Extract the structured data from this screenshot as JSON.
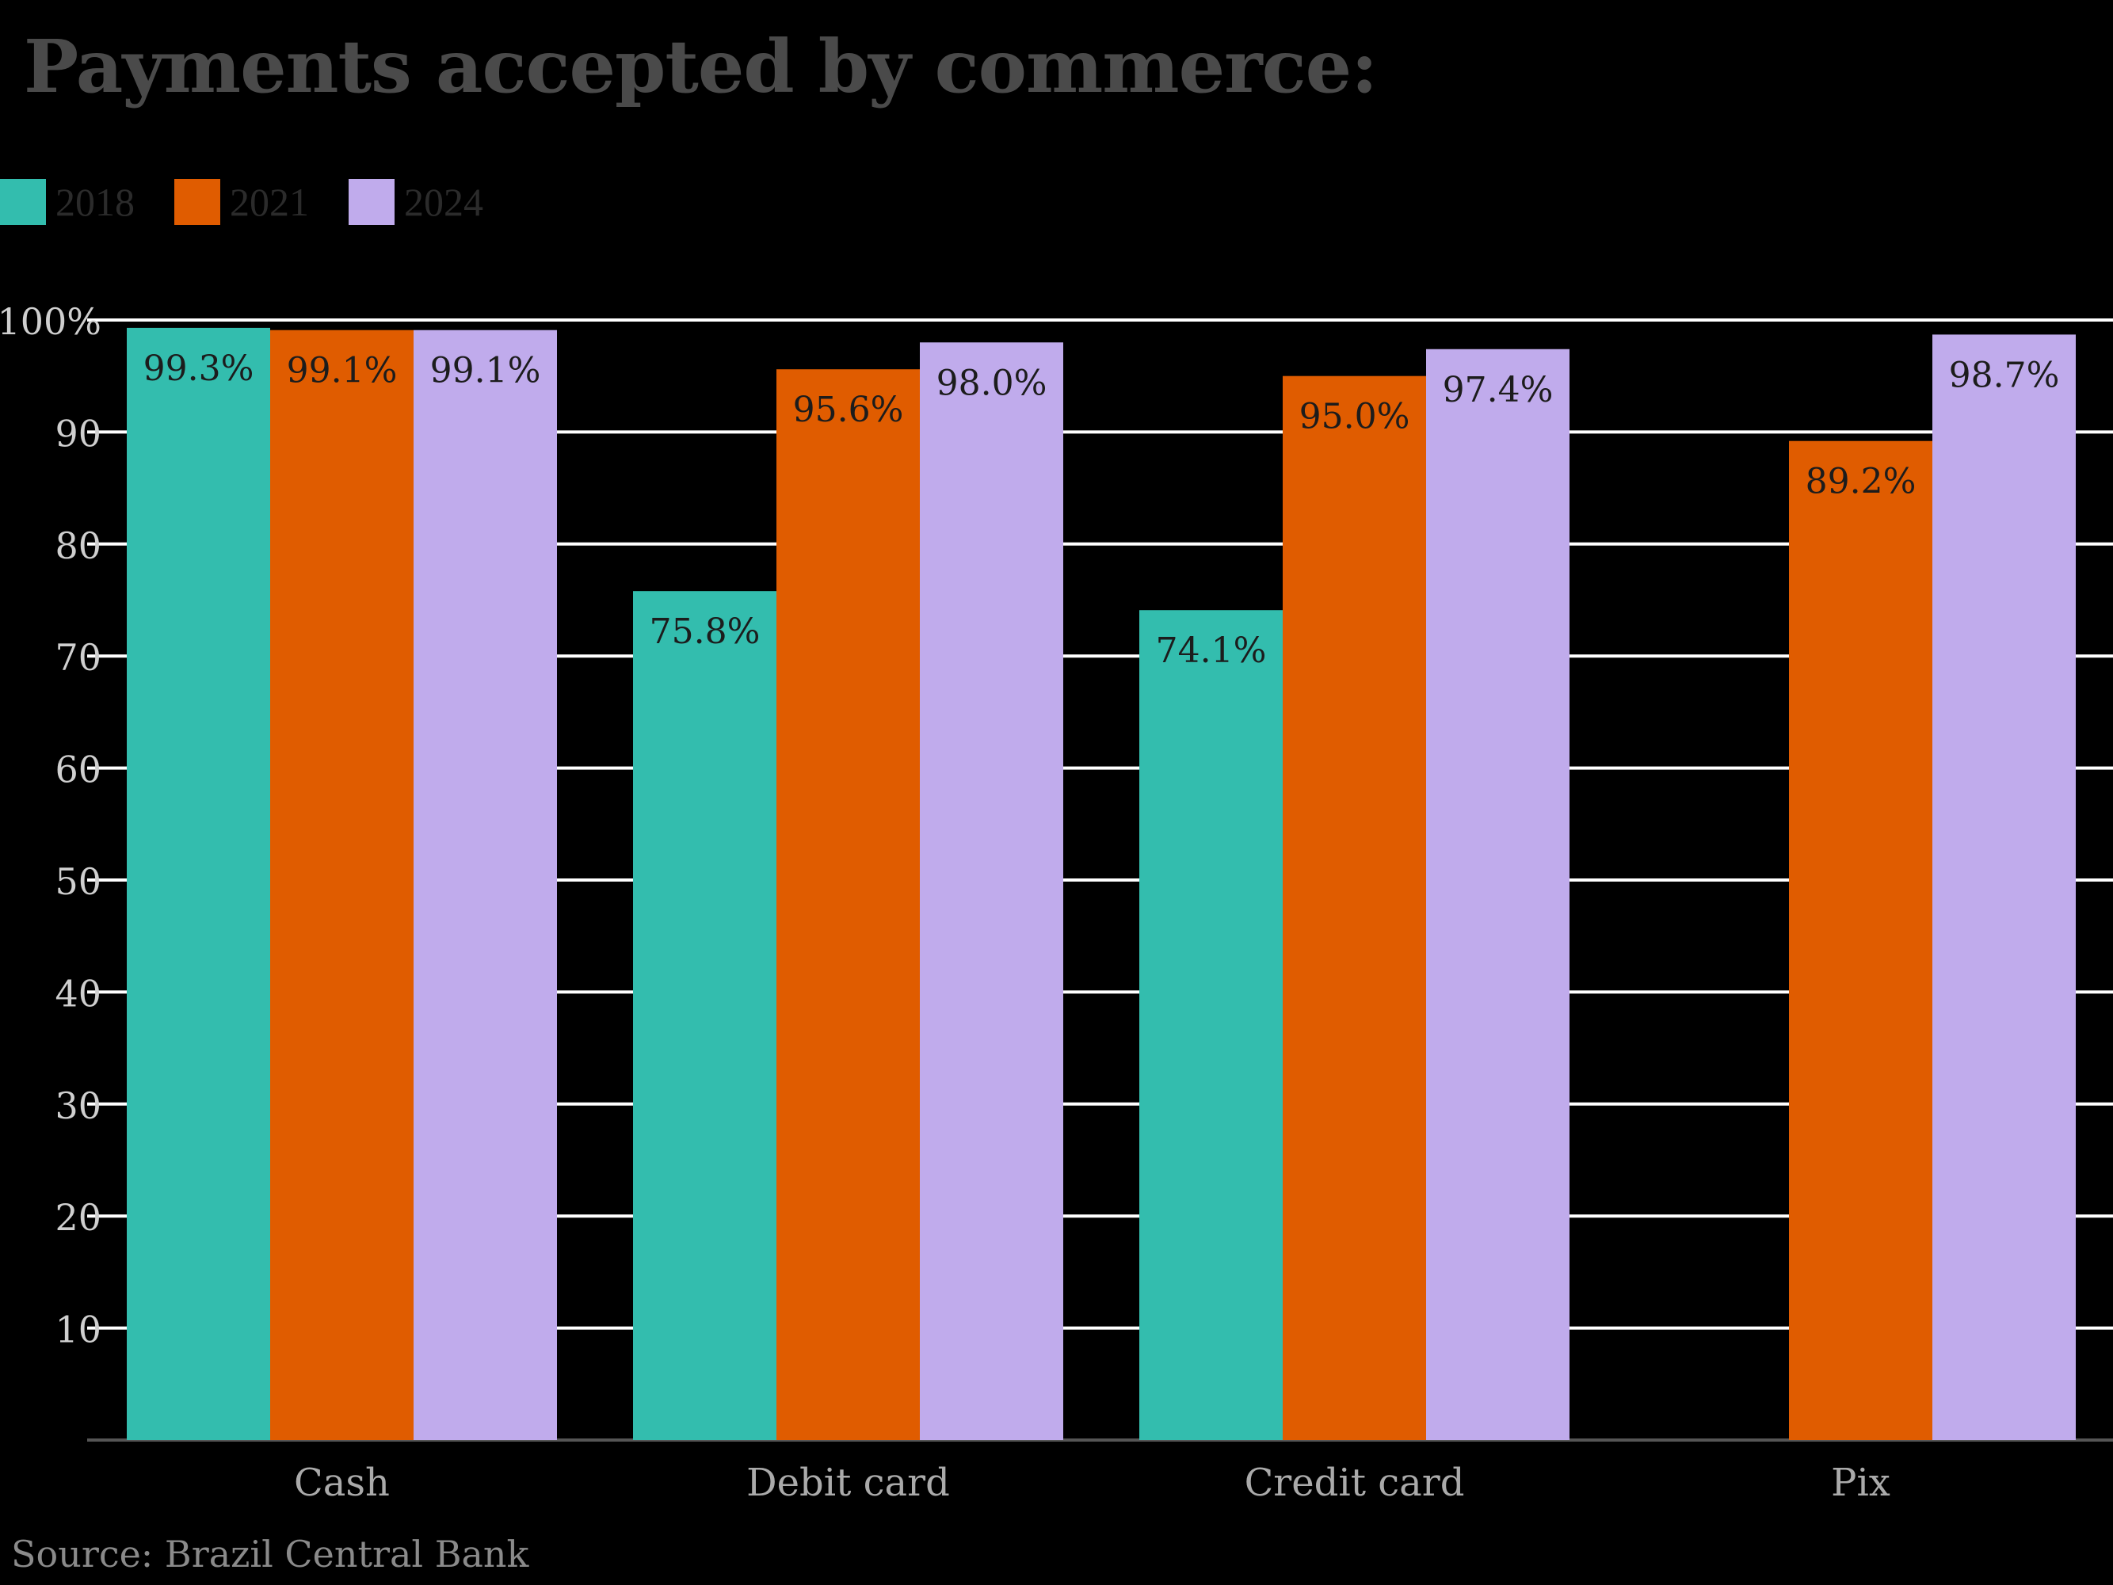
{
  "title": "Payments accepted by commerce:",
  "source": "Source: Brazil Central Bank",
  "chart_data": {
    "type": "bar",
    "categories": [
      "Cash",
      "Debit card",
      "Credit card",
      "Pix"
    ],
    "series": [
      {
        "name": "2018",
        "color": "#33bdae",
        "values": [
          99.3,
          75.8,
          74.1,
          null
        ],
        "labels": [
          "99.3%",
          "75.8%",
          "74.1%",
          ""
        ]
      },
      {
        "name": "2021",
        "color": "#e05c00",
        "values": [
          99.1,
          95.6,
          95.0,
          89.2
        ],
        "labels": [
          "99.1%",
          "95.6%",
          "95.0%",
          "89.2%"
        ]
      },
      {
        "name": "2024",
        "color": "#c0abec",
        "values": [
          99.1,
          98.0,
          97.4,
          98.7
        ],
        "labels": [
          "99.1%",
          "98.0%",
          "97.4%",
          "98.7%"
        ]
      }
    ],
    "yticks": [
      {
        "value": 10,
        "label": "10"
      },
      {
        "value": 20,
        "label": "20"
      },
      {
        "value": 30,
        "label": "30"
      },
      {
        "value": 40,
        "label": "40"
      },
      {
        "value": 50,
        "label": "50"
      },
      {
        "value": 60,
        "label": "60"
      },
      {
        "value": 70,
        "label": "70"
      },
      {
        "value": 80,
        "label": "80"
      },
      {
        "value": 90,
        "label": "90"
      },
      {
        "value": 100,
        "label": "100%"
      }
    ],
    "ylim": [
      0,
      100
    ],
    "grid": true,
    "legend_position": "top-left"
  }
}
